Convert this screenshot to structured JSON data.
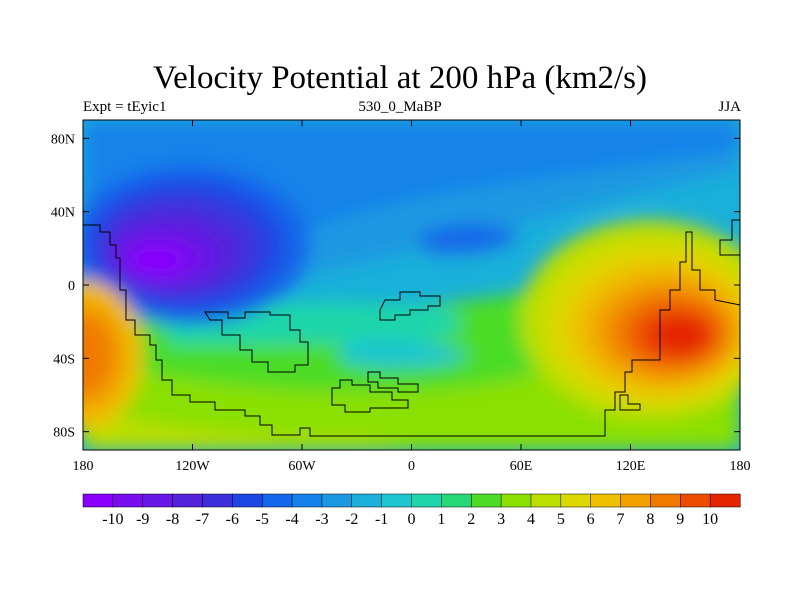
{
  "header": {
    "title": "Velocity Potential at 200 hPa (km2/s)",
    "left_label": "Expt = tEyic1",
    "center_label": "530_0_MaBP",
    "right_label": "JJA"
  },
  "chart_data": {
    "type": "heatmap",
    "title": "Velocity Potential at 200 hPa (km2/s)",
    "xlabel": "",
    "ylabel": "",
    "xlim": [
      -180,
      180
    ],
    "ylim": [
      -90,
      90
    ],
    "x_ticks": [
      {
        "value": -180,
        "label": "180"
      },
      {
        "value": -120,
        "label": "120W"
      },
      {
        "value": -60,
        "label": "60W"
      },
      {
        "value": 0,
        "label": "0"
      },
      {
        "value": 60,
        "label": "60E"
      },
      {
        "value": 120,
        "label": "120E"
      },
      {
        "value": 180,
        "label": "180"
      }
    ],
    "y_ticks": [
      {
        "value": 80,
        "label": "80N"
      },
      {
        "value": 40,
        "label": "40N"
      },
      {
        "value": 0,
        "label": "0"
      },
      {
        "value": -40,
        "label": "40S"
      },
      {
        "value": -80,
        "label": "80S"
      }
    ],
    "colorbar": {
      "labels": [
        "-10",
        "-9",
        "-8",
        "-7",
        "-6",
        "-5",
        "-4",
        "-3",
        "-2",
        "-1",
        "0",
        "1",
        "2",
        "3",
        "4",
        "5",
        "6",
        "7",
        "8",
        "9",
        "10"
      ],
      "colors": [
        "#8a00ff",
        "#7a0cf0",
        "#6818e6",
        "#5522dc",
        "#3d30dc",
        "#1e46e4",
        "#1466ea",
        "#1482ea",
        "#1a98e2",
        "#1ab0da",
        "#1ec6d0",
        "#1ed6aa",
        "#28d878",
        "#4cdc28",
        "#8ae000",
        "#bcde00",
        "#dcd800",
        "#eec000",
        "#f2a000",
        "#f07a00",
        "#ec4c00",
        "#e42400"
      ]
    },
    "features": [
      {
        "name": "velocity potential minimum",
        "lon": -142,
        "lat": 15,
        "value": -10
      },
      {
        "name": "velocity potential maximum",
        "lon": 145,
        "lat": -28,
        "value": 10
      },
      {
        "name": "secondary maximum",
        "lon": -175,
        "lat": -33,
        "value": 8
      }
    ]
  }
}
